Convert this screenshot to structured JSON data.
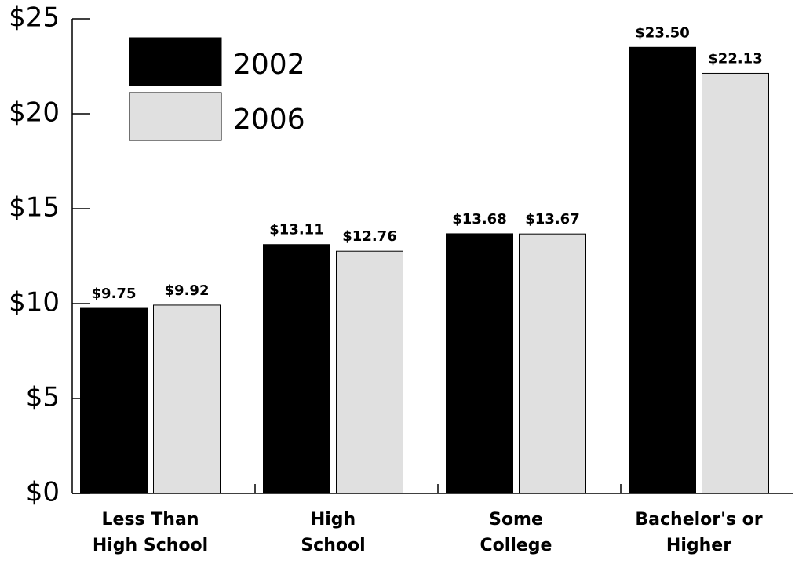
{
  "chart_data": {
    "type": "bar",
    "categories": [
      "Less Than\nHigh School",
      "High\nSchool",
      "Some\nCollege",
      "Bachelor's or\nHigher"
    ],
    "series": [
      {
        "name": "2002",
        "color": "#000000",
        "values": [
          9.75,
          13.11,
          13.68,
          23.5
        ],
        "value_labels": [
          "$9.75",
          "$13.11",
          "$13.68",
          "$23.50"
        ]
      },
      {
        "name": "2006",
        "color": "#e0e0e0",
        "values": [
          9.92,
          12.76,
          13.67,
          22.13
        ],
        "value_labels": [
          "$9.92",
          "$12.76",
          "$13.67",
          "$22.13"
        ]
      }
    ],
    "ylim": [
      0,
      25
    ],
    "yticks": [
      {
        "value": 0,
        "label": "$0"
      },
      {
        "value": 5,
        "label": "$5"
      },
      {
        "value": 10,
        "label": "$10"
      },
      {
        "value": 15,
        "label": "$15"
      },
      {
        "value": 20,
        "label": "$20"
      },
      {
        "value": 25,
        "label": "$25"
      }
    ],
    "legend": "upper left",
    "grid": false
  }
}
